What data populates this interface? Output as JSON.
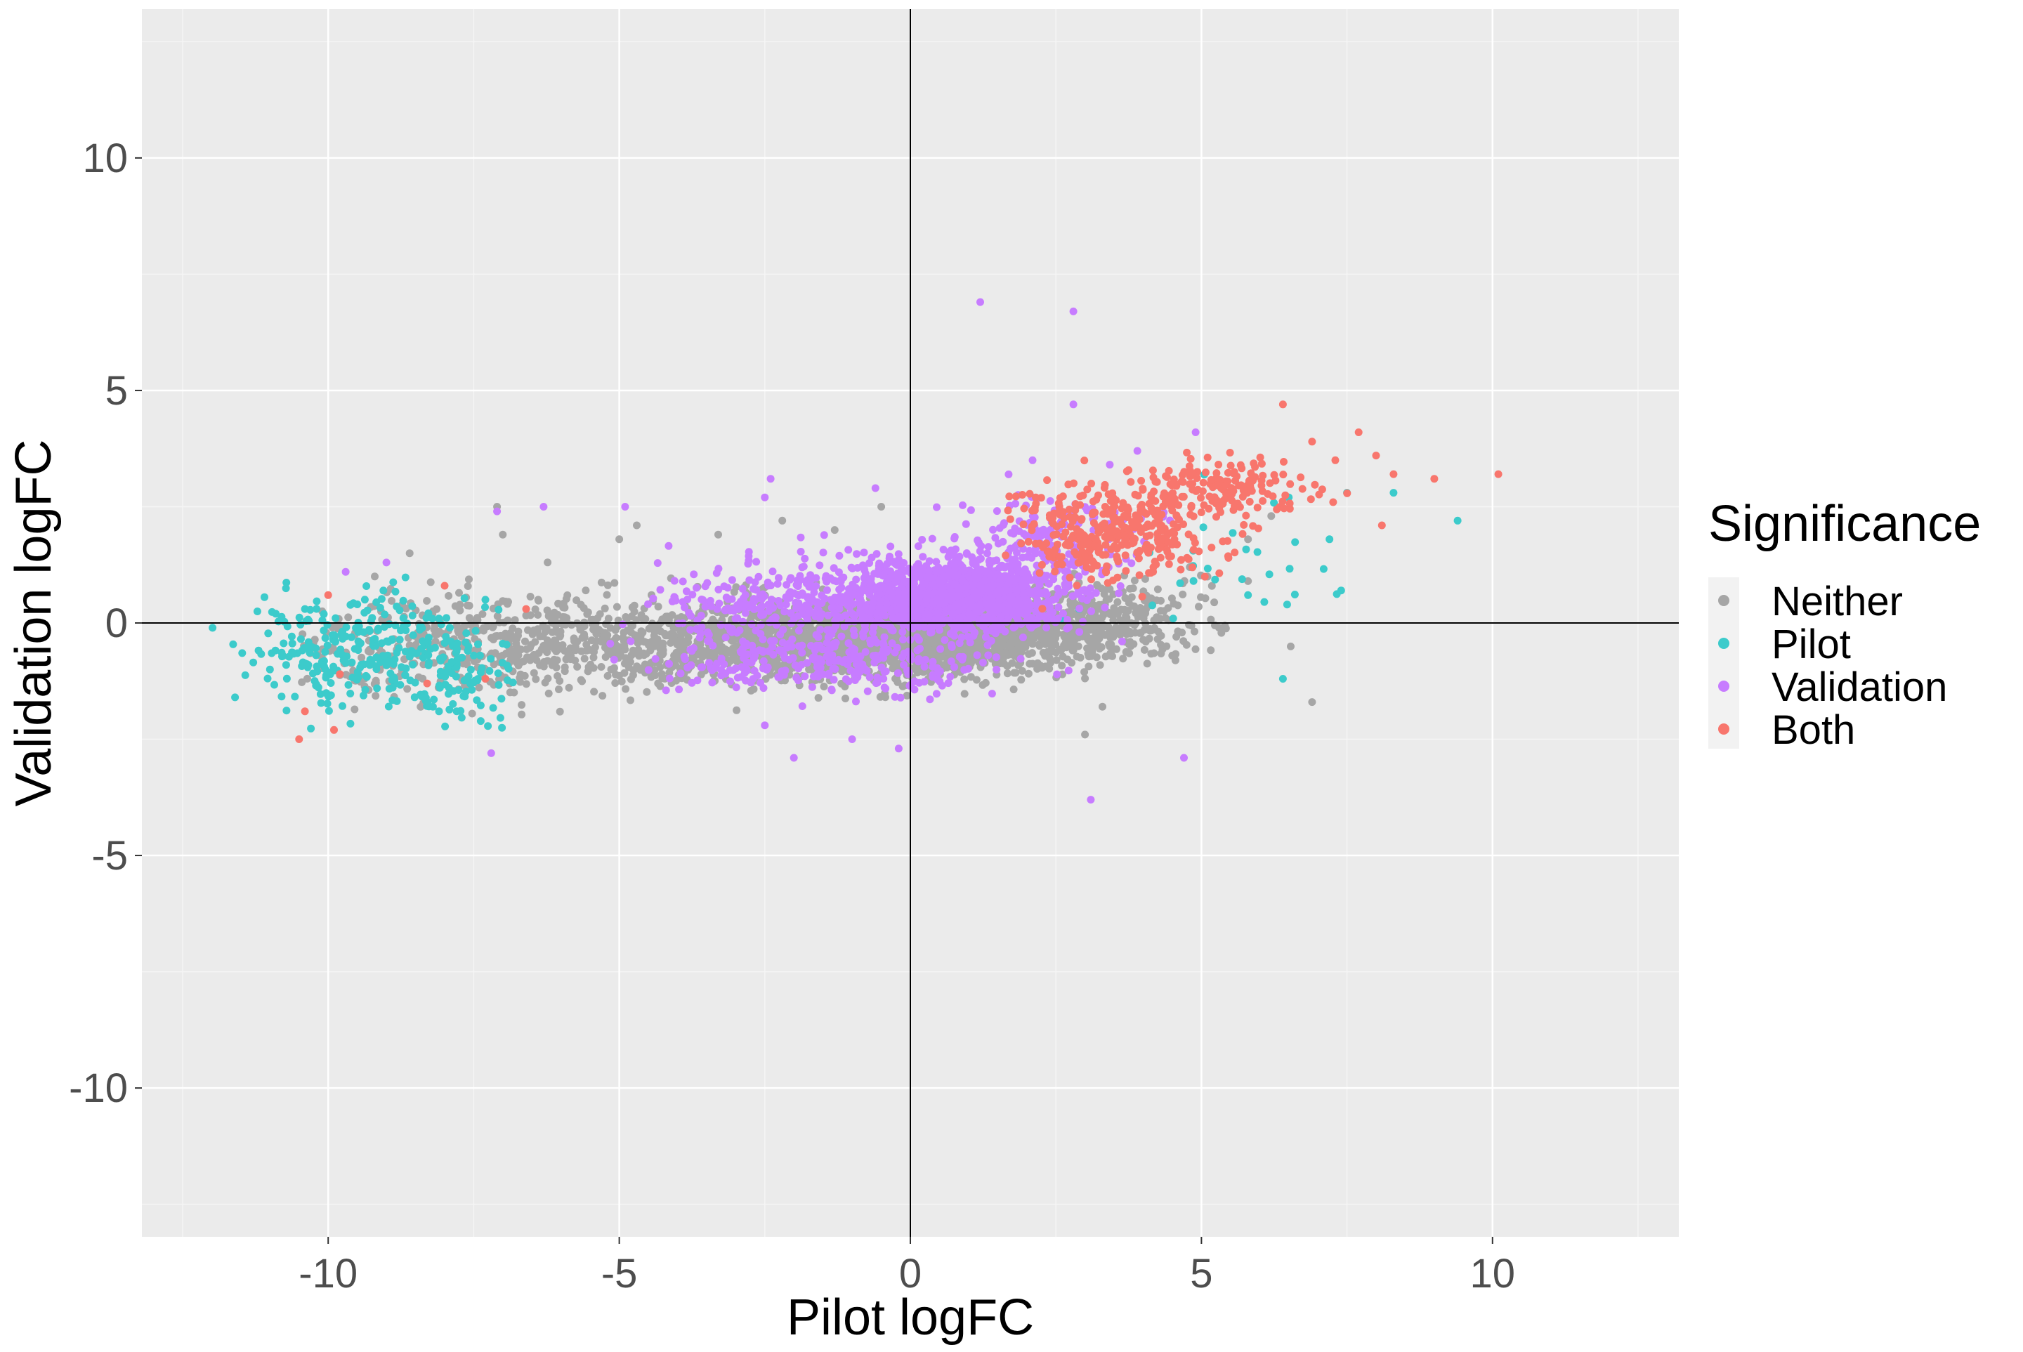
{
  "chart_data": {
    "type": "scatter",
    "xlabel": "Pilot logFC",
    "ylabel": "Validation logFC",
    "xlim": [
      -13.2,
      13.2
    ],
    "ylim": [
      -13.2,
      13.2
    ],
    "xticks": [
      -10,
      -5,
      0,
      5,
      10
    ],
    "yticks": [
      -10,
      -5,
      0,
      5,
      10
    ],
    "xtick_labels": [
      "-10",
      "-5",
      "0",
      "5",
      "10"
    ],
    "ytick_labels": [
      "-10",
      "-5",
      "0",
      "5",
      "10"
    ],
    "grid": true,
    "reference_lines": {
      "x": 0,
      "y": 0
    },
    "colors": {
      "panel_bg": "#ebebeb",
      "grid_major": "#ffffff",
      "grid_minor": "#f5f5f5",
      "reference_line": "#000000"
    },
    "legend": {
      "title": "Significance",
      "position": "right",
      "entries": [
        {
          "label": "Neither",
          "color": "#a6a6a6"
        },
        {
          "label": "Pilot",
          "color": "#3ccbcb"
        },
        {
          "label": "Validation",
          "color": "#c77cff"
        },
        {
          "label": "Both",
          "color": "#f8766d"
        }
      ]
    },
    "series": [
      {
        "name": "Neither",
        "color": "#a6a6a6",
        "clusters": [
          {
            "n": 1300,
            "cx": -2.5,
            "cy": -0.4,
            "sx": 2.4,
            "sy": 0.45,
            "xmin": -10.5,
            "xmax": 7
          },
          {
            "n": 1100,
            "cx": 0.2,
            "cy": -0.3,
            "sx": 1.3,
            "sy": 0.4,
            "xmin": -10.5,
            "xmax": 7
          },
          {
            "n": 500,
            "cx": 2.8,
            "cy": 0.1,
            "sx": 1.0,
            "sy": 0.45,
            "xmin": -10.5,
            "xmax": 7
          },
          {
            "n": 300,
            "cx": -8,
            "cy": -0.5,
            "sx": 1.4,
            "sy": 0.6,
            "xmin": -10.5,
            "xmax": 7
          }
        ],
        "points": [
          [
            -7.1,
            2.5
          ],
          [
            -7.0,
            1.9
          ],
          [
            -5.0,
            1.8
          ],
          [
            -4.7,
            2.1
          ],
          [
            -9.2,
            1.0
          ],
          [
            -8.6,
            1.5
          ],
          [
            3.0,
            -2.4
          ],
          [
            3.3,
            -1.8
          ],
          [
            4.4,
            -0.5
          ],
          [
            5.3,
            -0.1
          ],
          [
            6.9,
            -1.7
          ],
          [
            5.8,
            1.8
          ],
          [
            6.2,
            2.3
          ],
          [
            -3.3,
            1.9
          ],
          [
            -2.2,
            2.2
          ],
          [
            -1.3,
            2.0
          ],
          [
            -0.5,
            2.5
          ],
          [
            5.8,
            0.9
          ],
          [
            4.8,
            1.2
          ]
        ]
      },
      {
        "name": "Pilot",
        "color": "#3ccbcb",
        "clusters": [
          {
            "n": 230,
            "cx": -9.6,
            "cy": -0.6,
            "sx": 0.85,
            "sy": 0.6,
            "xmin": -12,
            "xmax": -6.8
          },
          {
            "n": 120,
            "cx": -7.8,
            "cy": -0.9,
            "sx": 0.6,
            "sy": 0.55,
            "xmin": -12,
            "xmax": -6.8
          },
          {
            "n": 25,
            "cx": 5.3,
            "cy": 1.4,
            "sx": 0.9,
            "sy": 0.7,
            "xmin": 3.5,
            "xmax": 9.5
          }
        ],
        "points": [
          [
            -11.6,
            -1.6
          ],
          [
            -11.0,
            -1.0
          ],
          [
            -10.9,
            0.2
          ],
          [
            -10.4,
            0.3
          ],
          [
            -9.5,
            0.4
          ],
          [
            -8.2,
            -1.8
          ],
          [
            -7.3,
            0.5
          ],
          [
            6.4,
            -1.2
          ],
          [
            7.4,
            0.7
          ],
          [
            7.2,
            1.8
          ],
          [
            8.3,
            2.8
          ],
          [
            9.4,
            2.2
          ],
          [
            5.8,
            0.6
          ],
          [
            6.5,
            2.7
          ],
          [
            7.5,
            2.8
          ],
          [
            2.6,
            0.1
          ],
          [
            2.9,
            0.3
          ]
        ]
      },
      {
        "name": "Validation",
        "color": "#c77cff",
        "clusters": [
          {
            "n": 1100,
            "cx": 0.8,
            "cy": 0.6,
            "sx": 0.9,
            "sy": 0.38,
            "xmin": -10,
            "xmax": 5
          },
          {
            "n": 380,
            "cx": -1.7,
            "cy": 0.4,
            "sx": 1.3,
            "sy": 0.5,
            "xmin": -10,
            "xmax": 5
          },
          {
            "n": 250,
            "cx": -1.4,
            "cy": -0.9,
            "sx": 1.4,
            "sy": 0.3,
            "xmin": -10,
            "xmax": 5
          },
          {
            "n": 180,
            "cx": 2.4,
            "cy": 1.7,
            "sx": 0.8,
            "sy": 0.55,
            "xmin": -10,
            "xmax": 5
          }
        ],
        "points": [
          [
            1.2,
            6.9
          ],
          [
            2.8,
            6.7
          ],
          [
            2.8,
            4.7
          ],
          [
            2.1,
            3.5
          ],
          [
            3.9,
            3.7
          ],
          [
            4.9,
            4.1
          ],
          [
            -0.6,
            2.9
          ],
          [
            -2.4,
            3.1
          ],
          [
            -2.5,
            2.7
          ],
          [
            -4.9,
            2.5
          ],
          [
            -6.3,
            2.5
          ],
          [
            -7.1,
            2.4
          ],
          [
            -7.2,
            -2.8
          ],
          [
            -2.5,
            -2.2
          ],
          [
            -2.0,
            -2.9
          ],
          [
            -1.0,
            -2.5
          ],
          [
            -0.2,
            -2.7
          ],
          [
            3.1,
            -3.8
          ],
          [
            4.7,
            -2.9
          ],
          [
            -9.7,
            1.1
          ],
          [
            -9.0,
            1.3
          ]
        ]
      },
      {
        "name": "Both",
        "color": "#f8766d",
        "clusters": [
          {
            "n": 350,
            "cx": 3.4,
            "cy": 1.9,
            "sx": 0.9,
            "sy": 0.5,
            "xmin": 1.5,
            "xmax": 8
          },
          {
            "n": 160,
            "cx": 5.3,
            "cy": 2.9,
            "sx": 0.75,
            "sy": 0.32,
            "xmin": 1.5,
            "xmax": 8
          }
        ],
        "points": [
          [
            6.4,
            4.7
          ],
          [
            6.9,
            3.9
          ],
          [
            7.7,
            4.1
          ],
          [
            8.0,
            3.6
          ],
          [
            8.3,
            3.2
          ],
          [
            9.0,
            3.1
          ],
          [
            10.1,
            3.2
          ],
          [
            8.1,
            2.1
          ],
          [
            7.3,
            3.5
          ],
          [
            -10.5,
            -2.5
          ],
          [
            -10.0,
            0.6
          ],
          [
            -9.9,
            -2.3
          ],
          [
            -8.3,
            -1.3
          ],
          [
            -7.3,
            -1.2
          ],
          [
            -8.0,
            0.8
          ],
          [
            -6.6,
            0.3
          ],
          [
            -10.4,
            -1.9
          ],
          [
            -9.8,
            -1.1
          ]
        ]
      }
    ]
  }
}
